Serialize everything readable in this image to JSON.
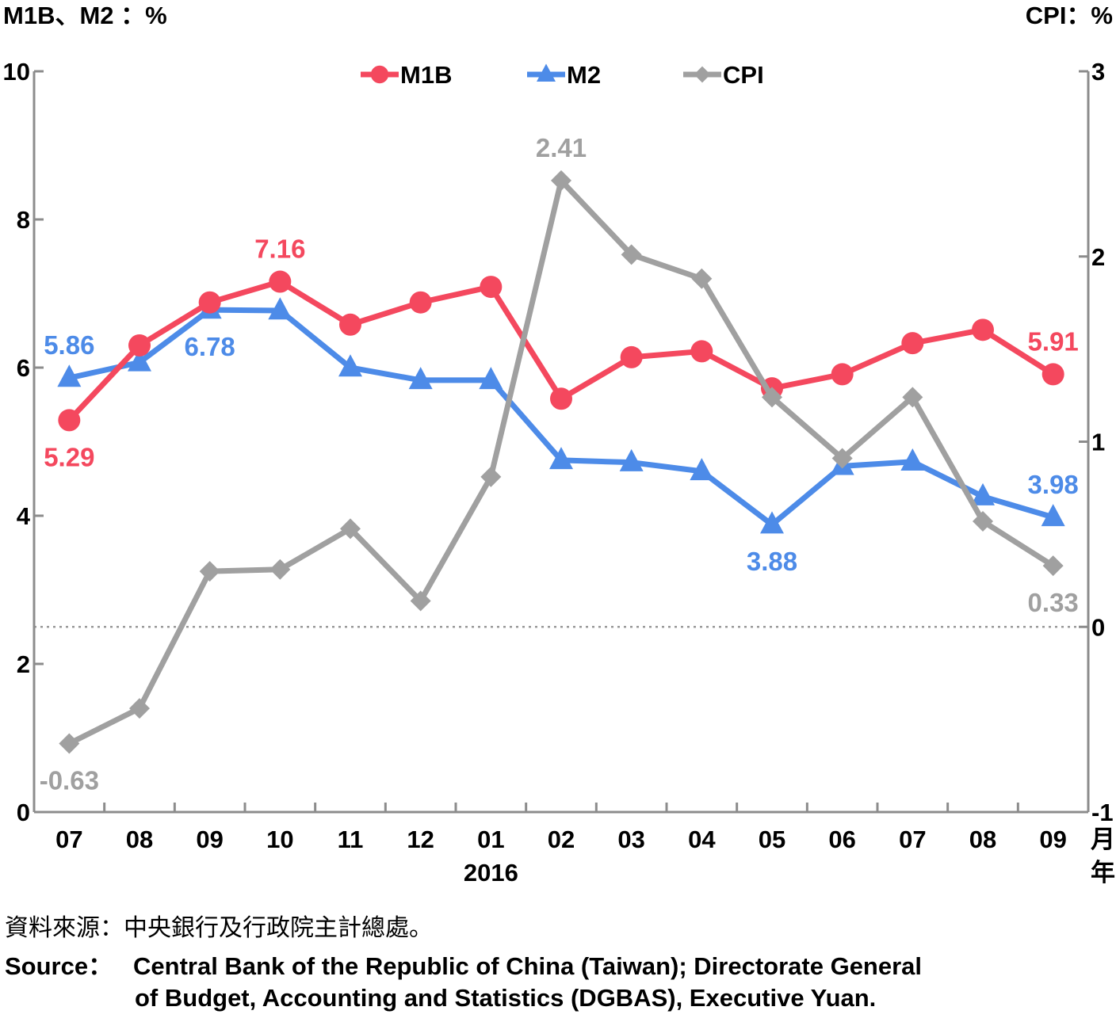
{
  "chart_data": {
    "type": "line",
    "left_axis_title": "M1B、M2 ：%",
    "right_axis_title": "CPI：%",
    "categories": [
      "07",
      "08",
      "09",
      "10",
      "11",
      "12",
      "01",
      "02",
      "03",
      "04",
      "05",
      "06",
      "07",
      "08",
      "09"
    ],
    "x_unit_month": "月",
    "x_unit_year": "年",
    "year_label": "2016",
    "year_label_category_index": 6,
    "left_ylim": [
      0,
      10
    ],
    "left_yticks": [
      "0",
      "2",
      "4",
      "6",
      "8",
      "10"
    ],
    "right_ylim": [
      -1,
      3
    ],
    "right_yticks": [
      "-1",
      "0",
      "1",
      "2",
      "3"
    ],
    "zero_line_right_axis": 0,
    "legend_position": "top-center",
    "series": [
      {
        "name": "M1B",
        "axis": "left",
        "color": "#f4485e",
        "marker": "circle",
        "values": [
          5.29,
          6.3,
          6.88,
          7.16,
          6.58,
          6.88,
          7.09,
          5.58,
          6.14,
          6.22,
          5.72,
          5.91,
          6.33,
          6.51,
          5.91
        ],
        "labels": [
          {
            "index": 0,
            "text": "5.29",
            "pos": "below"
          },
          {
            "index": 3,
            "text": "7.16",
            "pos": "above"
          },
          {
            "index": 14,
            "text": "5.91",
            "pos": "above"
          }
        ]
      },
      {
        "name": "M2",
        "axis": "left",
        "color": "#4d8be8",
        "marker": "triangle",
        "values": [
          5.86,
          6.07,
          6.78,
          6.77,
          6.0,
          5.83,
          5.83,
          4.75,
          4.72,
          4.6,
          3.88,
          4.67,
          4.73,
          4.26,
          3.98
        ],
        "labels": [
          {
            "index": 0,
            "text": "5.86",
            "pos": "above"
          },
          {
            "index": 2,
            "text": "6.78",
            "pos": "below"
          },
          {
            "index": 10,
            "text": "3.88",
            "pos": "below"
          },
          {
            "index": 14,
            "text": "3.98",
            "pos": "above"
          }
        ]
      },
      {
        "name": "CPI",
        "axis": "right",
        "color": "#a0a0a0",
        "marker": "diamond",
        "values": [
          -0.63,
          -0.44,
          0.3,
          0.31,
          0.53,
          0.14,
          0.81,
          2.41,
          2.01,
          1.88,
          1.24,
          0.91,
          1.24,
          0.57,
          0.33
        ],
        "labels": [
          {
            "index": 0,
            "text": "-0.63",
            "pos": "below"
          },
          {
            "index": 7,
            "text": "2.41",
            "pos": "above"
          },
          {
            "index": 14,
            "text": "0.33",
            "pos": "below"
          }
        ]
      }
    ]
  },
  "source": {
    "zh": "資料來源：中央銀行及行政院主計總處。",
    "en_label": "Source：",
    "en_line1": "Central Bank of the Republic of China (Taiwan); Directorate General",
    "en_line2": "of Budget, Accounting and Statistics (DGBAS), Executive Yuan."
  }
}
